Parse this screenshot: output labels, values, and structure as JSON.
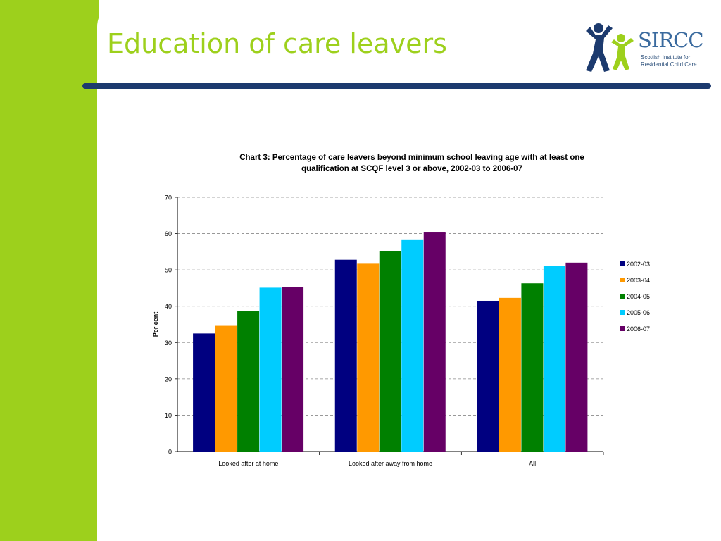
{
  "slide": {
    "title": "Education of care leavers"
  },
  "logo": {
    "name": "SIRCC",
    "subtitle_line1": "Scottish Institute for",
    "subtitle_line2": "Residential Child Care"
  },
  "colors": {
    "side_bar": "#9dd01c",
    "title": "#9dd01c",
    "rule": "#1c3a6e"
  },
  "chart_data": {
    "type": "bar",
    "title_line1": "Chart 3: Percentage of care leavers beyond minimum school leaving age with at least one",
    "title_line2": "qualification at SCQF level 3 or above, 2002-03 to 2006-07",
    "xlabel": "",
    "ylabel": "Per cent",
    "ylim": [
      0,
      70
    ],
    "yticks": [
      0,
      10,
      20,
      30,
      40,
      50,
      60,
      70
    ],
    "grid": true,
    "legend_position": "right",
    "categories": [
      "Looked after at home",
      "Looked after away from home",
      "All"
    ],
    "series": [
      {
        "name": "2002-03",
        "color": "#000080",
        "values": [
          32.5,
          52.8,
          41.5
        ]
      },
      {
        "name": "2003-04",
        "color": "#ff9900",
        "values": [
          34.6,
          51.7,
          42.3
        ]
      },
      {
        "name": "2004-05",
        "color": "#008000",
        "values": [
          38.6,
          55.1,
          46.3
        ]
      },
      {
        "name": "2005-06",
        "color": "#00ccff",
        "values": [
          45.1,
          58.4,
          51.1
        ]
      },
      {
        "name": "2006-07",
        "color": "#660066",
        "values": [
          45.3,
          60.3,
          52.0
        ]
      }
    ]
  }
}
